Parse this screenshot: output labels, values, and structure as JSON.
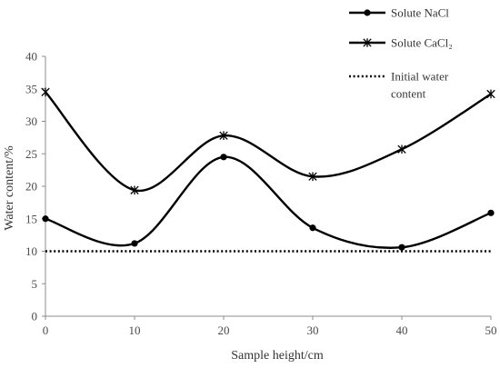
{
  "chart_data": {
    "type": "line",
    "xlabel": "Sample height/cm",
    "ylabel": "Water content/%",
    "x": [
      0,
      10,
      20,
      30,
      40,
      50
    ],
    "xlim": [
      0,
      50
    ],
    "ylim": [
      0,
      40
    ],
    "xticks": [
      "0",
      "10",
      "20",
      "30",
      "40",
      "50"
    ],
    "yticks": [
      "0",
      "5",
      "10",
      "15",
      "20",
      "25",
      "30",
      "35",
      "40"
    ],
    "grid": false,
    "legend_position": "top-right",
    "series": [
      {
        "name": "Solute NaCl",
        "marker": "circle",
        "style": "solid",
        "color": "#000000",
        "values": [
          15.0,
          11.2,
          24.5,
          13.6,
          10.6,
          15.9
        ]
      },
      {
        "name": "Solute CaCl₂",
        "marker": "star",
        "style": "solid",
        "color": "#000000",
        "values": [
          34.5,
          19.4,
          27.8,
          21.5,
          25.7,
          34.2
        ]
      },
      {
        "name": "Initial water content",
        "marker": "none",
        "style": "dotted",
        "color": "#000000",
        "values": [
          10,
          10,
          10,
          10,
          10,
          10
        ]
      }
    ],
    "legend": {
      "entries": [
        {
          "lines": [
            "Solute NaCl"
          ]
        },
        {
          "lines": [
            "Solute CaCl₂"
          ]
        },
        {
          "lines": [
            "Initial water",
            "content"
          ]
        }
      ]
    }
  }
}
